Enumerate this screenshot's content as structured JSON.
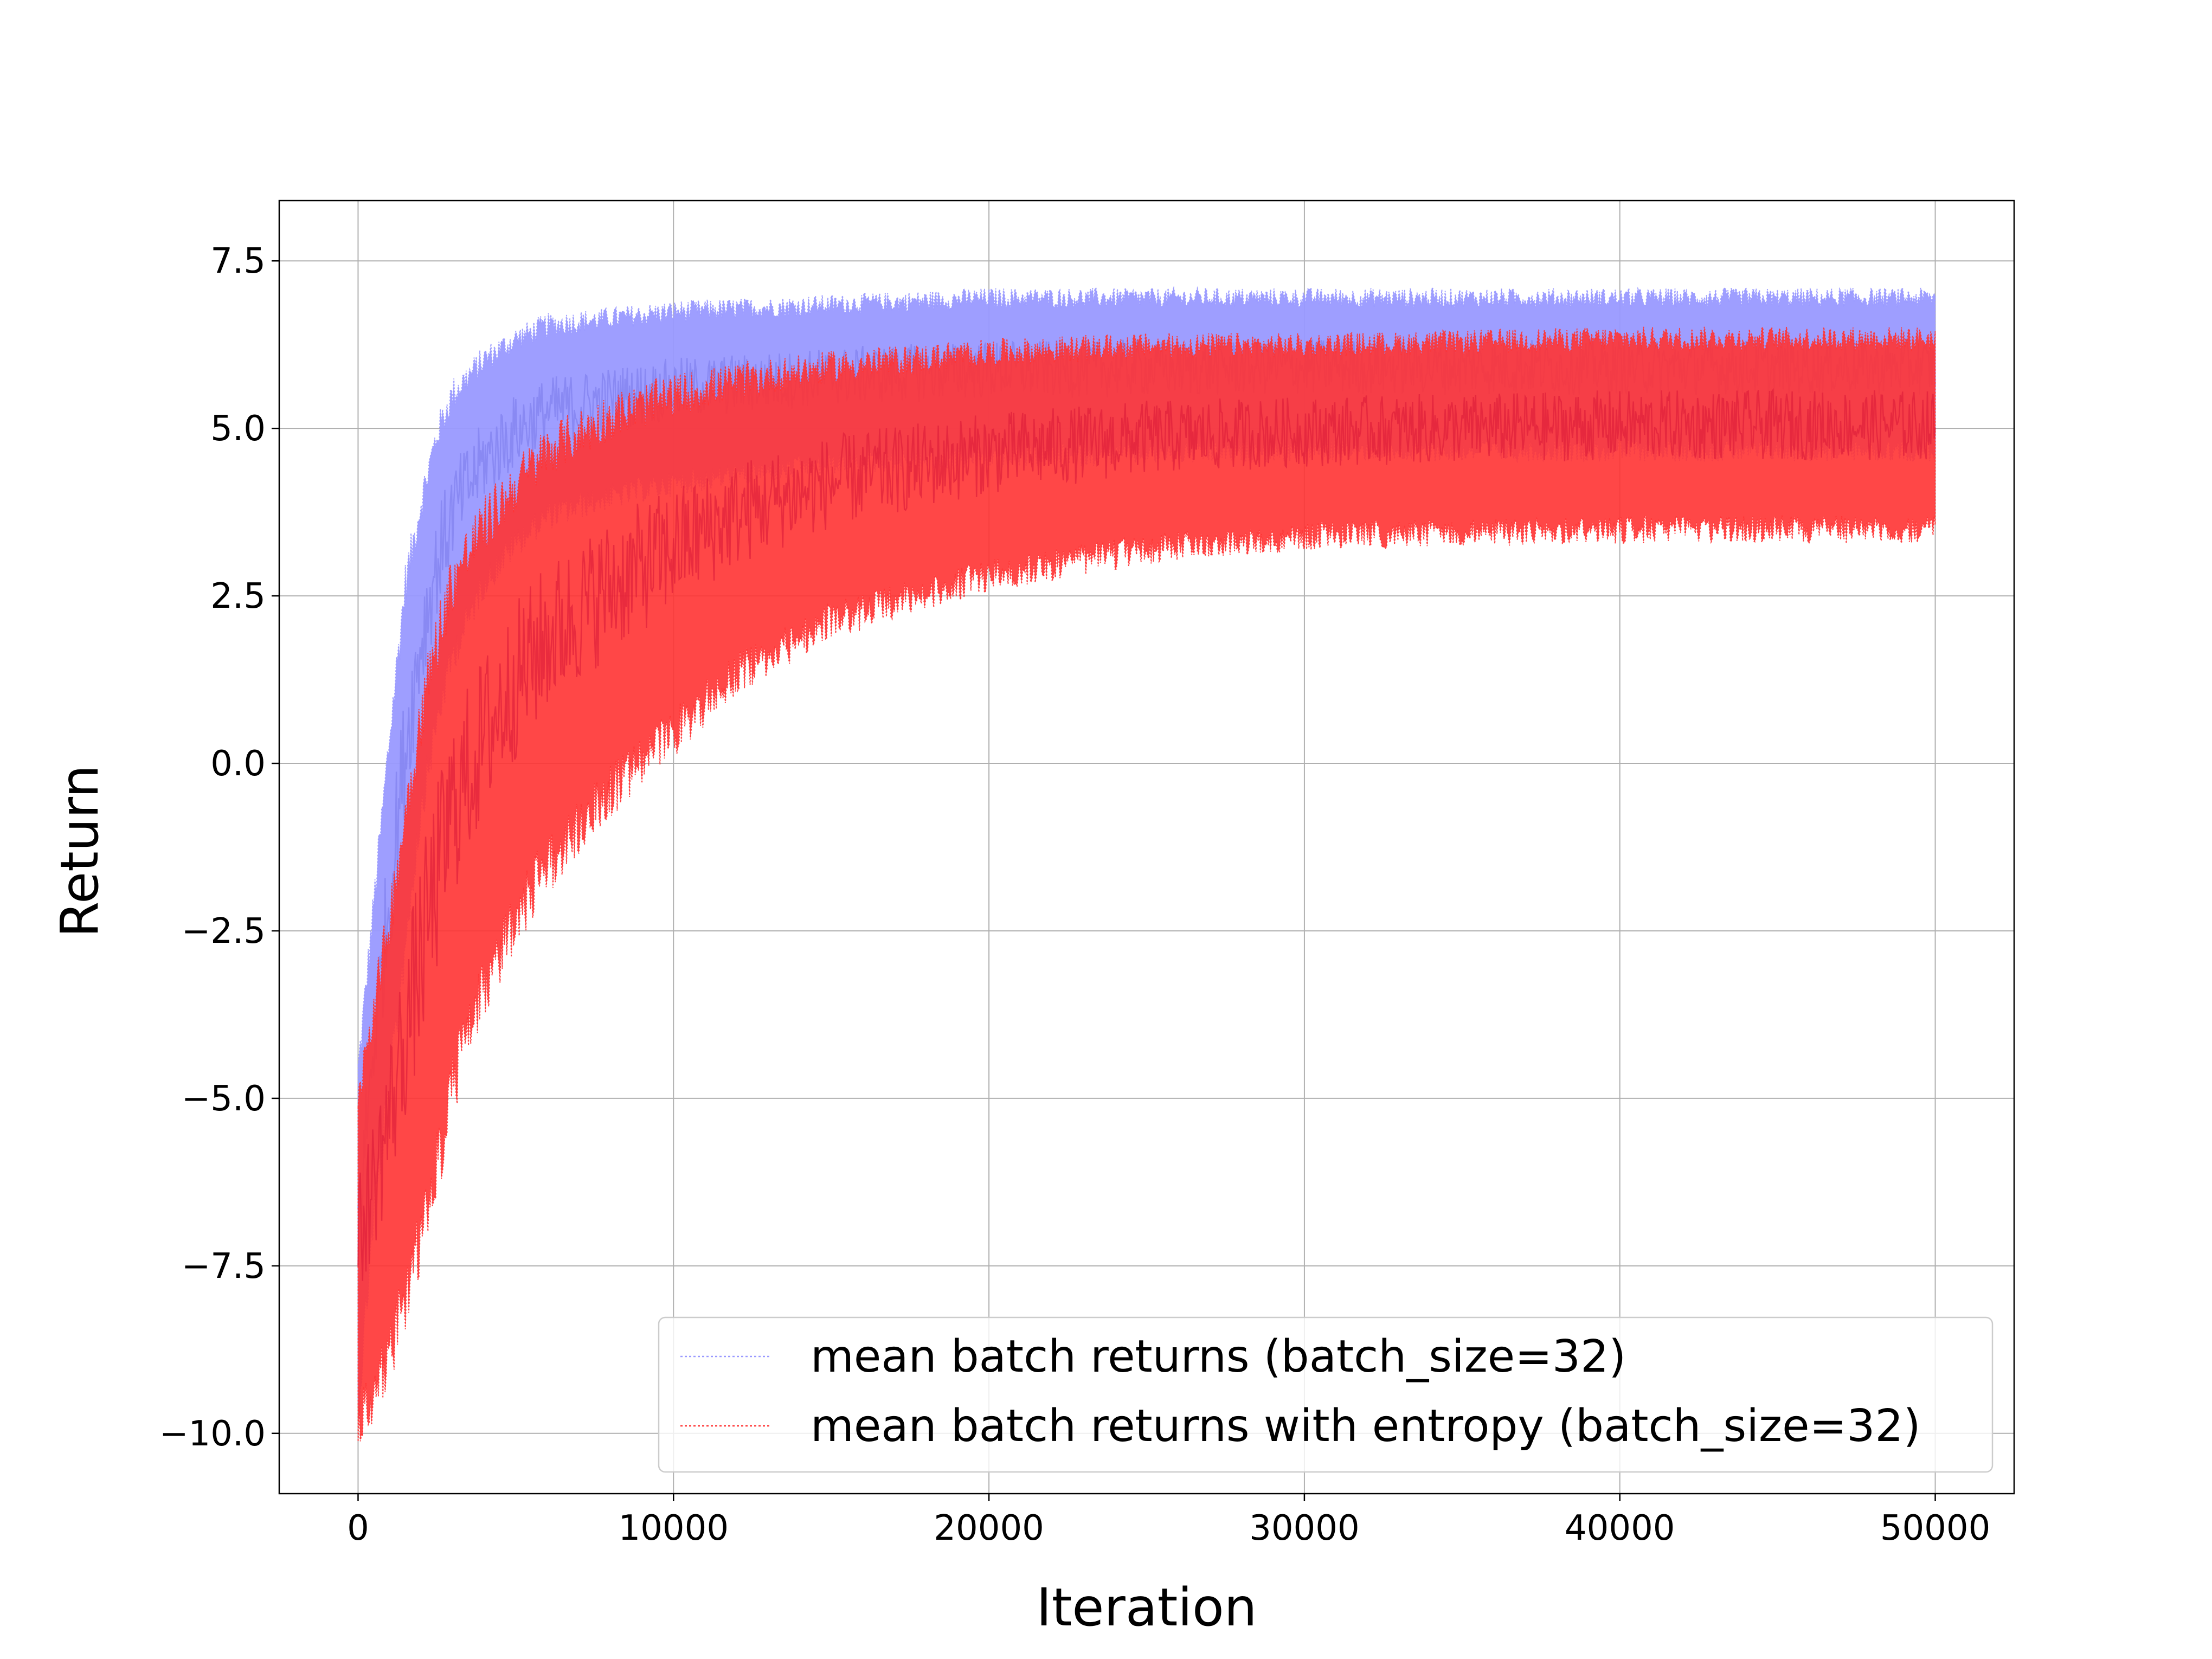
{
  "chart_data": {
    "type": "line",
    "title": "",
    "xlabel": "Iteration",
    "ylabel": "Return",
    "xlim": [
      -2500,
      52500
    ],
    "ylim": [
      -10.9,
      8.4
    ],
    "xticks": [
      0,
      10000,
      20000,
      30000,
      40000,
      50000
    ],
    "xtick_labels": [
      "0",
      "10000",
      "20000",
      "30000",
      "40000",
      "50000"
    ],
    "yticks": [
      -10.0,
      -7.5,
      -5.0,
      -2.5,
      0.0,
      2.5,
      5.0,
      7.5
    ],
    "ytick_labels": [
      "−10.0",
      "−7.5",
      "−5.0",
      "−2.5",
      "0.0",
      "2.5",
      "5.0",
      "7.5"
    ],
    "grid": true,
    "legend_position": "lower-right",
    "series": [
      {
        "name": "mean batch returns (batch_size=32)",
        "color": "#9999ff",
        "style": "dotted",
        "x": [
          0,
          500,
          1000,
          1500,
          2000,
          2500,
          3000,
          4000,
          5000,
          6000,
          8000,
          10000,
          15000,
          20000,
          30000,
          40000,
          50000
        ],
        "lower": [
          -9.8,
          -6.8,
          -5.0,
          -2.8,
          -0.8,
          0.5,
          1.5,
          2.6,
          3.2,
          3.6,
          3.9,
          4.1,
          4.4,
          4.5,
          4.6,
          4.6,
          4.6
        ],
        "upper": [
          -4.5,
          -2.0,
          0.5,
          2.8,
          4.0,
          5.0,
          5.6,
          6.1,
          6.4,
          6.6,
          6.7,
          6.8,
          6.9,
          7.0,
          7.0,
          7.0,
          7.0
        ]
      },
      {
        "name": "mean batch returns with entropy (batch_size=32)",
        "color": "#ff3333",
        "style": "dotted",
        "x": [
          0,
          500,
          1000,
          1500,
          2000,
          2500,
          3000,
          4000,
          5000,
          6000,
          8000,
          10000,
          12000,
          15000,
          20000,
          25000,
          30000,
          40000,
          50000
        ],
        "lower": [
          -10.0,
          -9.6,
          -9.0,
          -8.2,
          -7.4,
          -6.3,
          -5.0,
          -3.6,
          -2.5,
          -1.7,
          -0.6,
          0.3,
          1.2,
          2.0,
          2.7,
          3.1,
          3.3,
          3.4,
          3.4
        ],
        "upper": [
          -4.8,
          -3.5,
          -2.2,
          -0.6,
          0.9,
          2.0,
          2.9,
          3.7,
          4.3,
          4.8,
          5.3,
          5.6,
          5.8,
          6.0,
          6.2,
          6.3,
          6.3,
          6.4,
          6.4
        ]
      }
    ]
  }
}
